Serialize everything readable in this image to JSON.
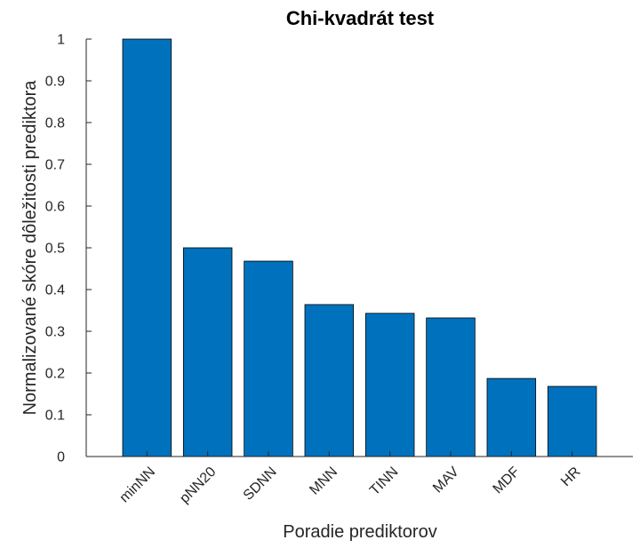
{
  "chart_data": {
    "type": "bar",
    "title": "Chi-kvadrát test",
    "xlabel": "Poradie prediktorov",
    "ylabel": "Normalizované skóre dôležitosti prediktora",
    "categories": [
      "minNN",
      "pNN20",
      "SDNN",
      "MNN",
      "TINN",
      "MAV",
      "MDF",
      "HR"
    ],
    "values": [
      1,
      0.5,
      0.468,
      0.364,
      0.343,
      0.332,
      0.187,
      0.168
    ],
    "color": "#0072bd",
    "ylim": [
      0,
      1
    ],
    "yticks": [
      0,
      0.1,
      0.2,
      0.3,
      0.4,
      0.5,
      0.6,
      0.7,
      0.8,
      0.9,
      1
    ]
  }
}
